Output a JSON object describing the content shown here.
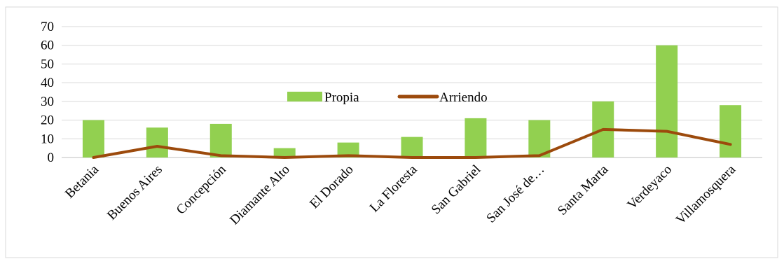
{
  "chart_data": {
    "type": "bar",
    "categories": [
      "Betania",
      "Buenos Aires",
      "Concepción",
      "Diamante Alto",
      "El Dorado",
      "La Floresta",
      "San Gabriel",
      "San José de…",
      "Santa Marta",
      "Verdeyaco",
      "Villamosquera"
    ],
    "series": [
      {
        "name": "Propia",
        "type": "bar",
        "color": "#92d050",
        "values": [
          20,
          16,
          18,
          5,
          8,
          11,
          21,
          20,
          30,
          60,
          28
        ]
      },
      {
        "name": "Arriendo",
        "type": "line",
        "color": "#9c4a0c",
        "values": [
          0,
          6,
          1,
          0,
          1,
          0,
          0,
          1,
          15,
          14,
          7
        ]
      }
    ],
    "y_ticks": [
      0,
      10,
      20,
      30,
      40,
      50,
      60,
      70
    ],
    "ylim": [
      0,
      70
    ],
    "grid": true,
    "legend_position": "center"
  }
}
